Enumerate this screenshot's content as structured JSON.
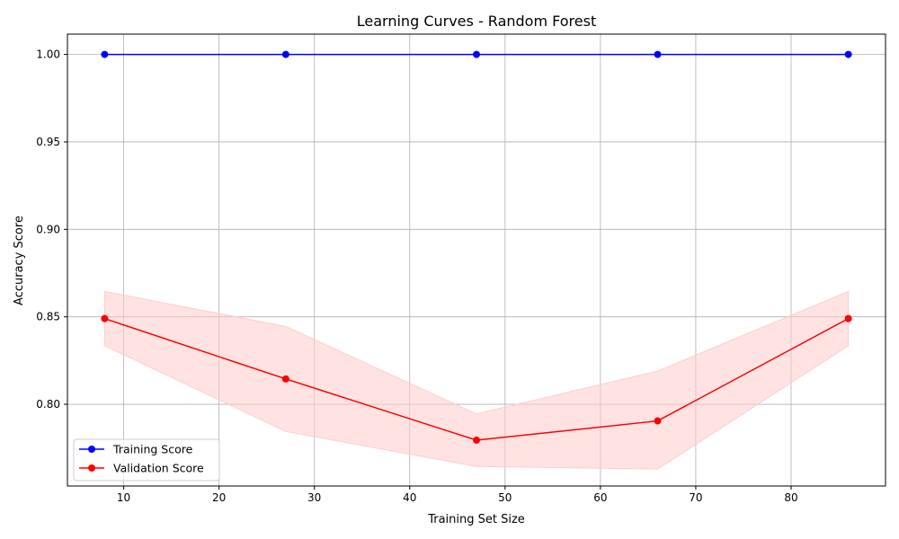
{
  "chart_data": {
    "type": "line",
    "title": "Learning Curves - Random Forest",
    "xlabel": "Training Set Size",
    "ylabel": "Accuracy Score",
    "x": [
      8,
      27,
      47,
      66,
      86
    ],
    "xlim": [
      4.1,
      89.9
    ],
    "ylim": [
      0.7533,
      1.0116
    ],
    "xticks": [
      10,
      20,
      30,
      40,
      50,
      60,
      70,
      80
    ],
    "xtick_labels": [
      "10",
      "20",
      "30",
      "40",
      "50",
      "60",
      "70",
      "80"
    ],
    "yticks": [
      0.8,
      0.85,
      0.9,
      0.95,
      1.0
    ],
    "ytick_labels": [
      "0.80",
      "0.85",
      "0.90",
      "0.95",
      "1.00"
    ],
    "grid": true,
    "legend_position": "lower-left",
    "series": [
      {
        "name": "Training Score",
        "color": "#0000ff",
        "marker": "circle",
        "values": [
          1.0,
          1.0,
          1.0,
          1.0,
          1.0
        ],
        "band_lower": [
          1.0,
          1.0,
          1.0,
          1.0,
          1.0
        ],
        "band_upper": [
          1.0,
          1.0,
          1.0,
          1.0,
          1.0
        ]
      },
      {
        "name": "Validation Score",
        "color": "#ff0000",
        "marker": "circle",
        "values": [
          0.849,
          0.8145,
          0.7795,
          0.7905,
          0.849
        ],
        "band_color": "#ffcccc",
        "band_lower": [
          0.8335,
          0.7845,
          0.7645,
          0.763,
          0.8335
        ],
        "band_upper": [
          0.8645,
          0.8445,
          0.7945,
          0.819,
          0.8645
        ]
      }
    ]
  }
}
